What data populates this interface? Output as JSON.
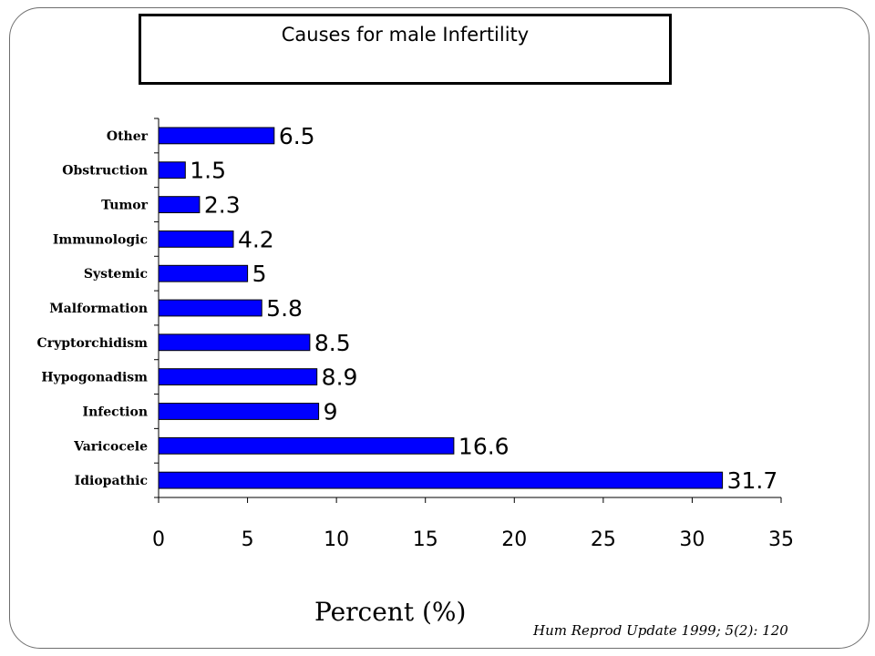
{
  "chart_data": {
    "type": "bar",
    "orientation": "horizontal",
    "title": "Causes for male Infertility",
    "xlabel": "Percent (%)",
    "ylabel": "",
    "categories": [
      "Other",
      "Obstruction",
      "Tumor",
      "Immunologic",
      "Systemic",
      "Malformation",
      "Cryptorchidism",
      "Hypogonadism",
      "Infection",
      "Varicocele",
      "Idiopathic"
    ],
    "values": [
      6.5,
      1.5,
      2.3,
      4.2,
      5,
      5.8,
      8.5,
      8.9,
      9,
      16.6,
      31.7
    ],
    "value_labels": [
      "6.5",
      "1.5",
      "2.3",
      "4.2",
      "5",
      "5.8",
      "8.5",
      "8.9",
      "9",
      "16.6",
      "31.7"
    ],
    "xlim": [
      0,
      35
    ],
    "xticks": [
      0,
      5,
      10,
      15,
      20,
      25,
      30,
      35
    ],
    "grid": false,
    "legend": "none",
    "bar_color": "#0000ff",
    "bar_edge_color": "#000000"
  },
  "citation": "Hum Reprod Update 1999; 5(2): 120"
}
